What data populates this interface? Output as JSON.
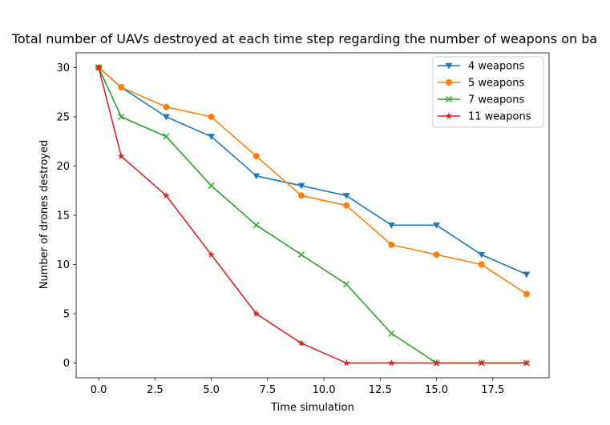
{
  "chart_data": {
    "type": "line",
    "title": "Total number of UAVs destroyed at each time step regarding the number of weapons on ba",
    "xlabel": "Time simulation",
    "ylabel": "Number of drones destroyed",
    "xlim": [
      -1,
      20
    ],
    "ylim": [
      -1.5,
      31.5
    ],
    "xticks": [
      0,
      2.5,
      5,
      7.5,
      10,
      12.5,
      15,
      17.5
    ],
    "xtick_labels": [
      "0.0",
      "2.5",
      "5.0",
      "7.5",
      "10.0",
      "12.5",
      "15.0",
      "17.5"
    ],
    "yticks": [
      0,
      5,
      10,
      15,
      20,
      25,
      30
    ],
    "ytick_labels": [
      "0",
      "5",
      "10",
      "15",
      "20",
      "25",
      "30"
    ],
    "grid": false,
    "legend_position": "top-right",
    "x": [
      0,
      1,
      3,
      5,
      7,
      9,
      11,
      13,
      15,
      17,
      19
    ],
    "series": [
      {
        "name": "4 weapons",
        "color": "#1f77b4",
        "marker": "triangle-down",
        "values": [
          30,
          28,
          25,
          23,
          19,
          18,
          17,
          14,
          14,
          11,
          9
        ]
      },
      {
        "name": "5 weapons",
        "color": "#ff7f0e",
        "marker": "circle",
        "values": [
          30,
          28,
          26,
          25,
          21,
          17,
          16,
          12,
          11,
          10,
          7
        ]
      },
      {
        "name": "7 weapons",
        "color": "#2ca02c",
        "marker": "x",
        "values": [
          30,
          25,
          23,
          18,
          14,
          11,
          8,
          3,
          0,
          0,
          0
        ]
      },
      {
        "name": "11 weapons",
        "color": "#d62728",
        "marker": "star",
        "values": [
          30,
          21,
          17,
          11,
          5,
          2,
          0,
          0,
          0,
          0,
          0
        ]
      }
    ]
  }
}
